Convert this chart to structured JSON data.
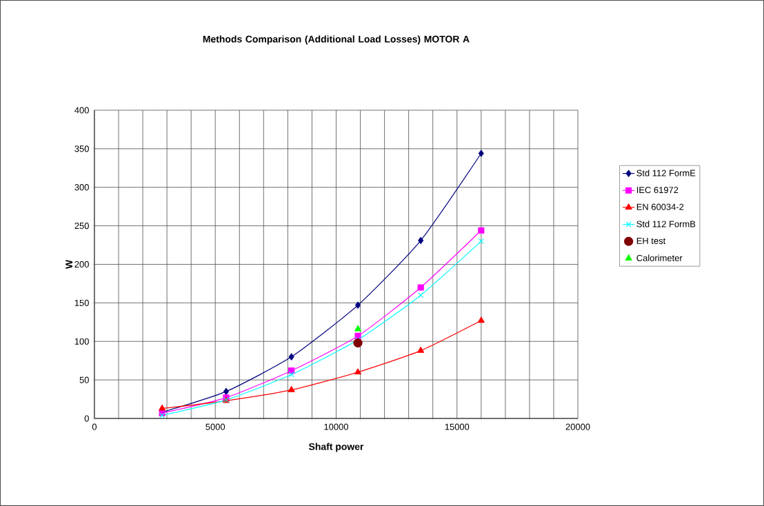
{
  "chart_data": {
    "type": "line",
    "title": "Methods Comparison (Additional Load Losses) MOTOR A",
    "xlabel": "Shaft power",
    "ylabel": "W",
    "xlim": [
      0,
      20000
    ],
    "ylim": [
      0,
      400
    ],
    "xticks": [
      0,
      {
        "value": 1000,
        "label": null
      },
      {
        "value": 2000,
        "label": null
      },
      {
        "value": 3000,
        "label": null
      },
      {
        "value": 4000,
        "label": null
      },
      5000,
      {
        "value": 6000,
        "label": null
      },
      {
        "value": 7000,
        "label": null
      },
      {
        "value": 8000,
        "label": null
      },
      {
        "value": 9000,
        "label": null
      },
      10000,
      {
        "value": 11000,
        "label": null
      },
      {
        "value": 12000,
        "label": null
      },
      {
        "value": 13000,
        "label": null
      },
      {
        "value": 14000,
        "label": null
      },
      15000,
      {
        "value": 16000,
        "label": null
      },
      {
        "value": 17000,
        "label": null
      },
      {
        "value": 18000,
        "label": null
      },
      {
        "value": 19000,
        "label": null
      },
      20000
    ],
    "yticks": [
      0,
      50,
      100,
      150,
      200,
      250,
      300,
      350,
      400
    ],
    "grid": true,
    "legend": "right",
    "series": [
      {
        "name": "Std 112 FormE",
        "color": "#000080",
        "marker": "diamond",
        "x": [
          2800,
          5450,
          8150,
          10900,
          13500,
          16000
        ],
        "values": [
          8,
          35,
          80,
          147,
          231,
          344
        ]
      },
      {
        "name": "IEC 61972",
        "color": "#ff00ff",
        "marker": "square",
        "x": [
          2800,
          5450,
          8150,
          10900,
          13500,
          16000
        ],
        "values": [
          7,
          27,
          62,
          107,
          170,
          244
        ]
      },
      {
        "name": "EN 60034-2",
        "color": "#ff0000",
        "marker": "triangle",
        "x": [
          2800,
          5450,
          8150,
          10900,
          13500,
          16000
        ],
        "values": [
          13,
          23,
          37,
          60,
          88,
          127
        ]
      },
      {
        "name": "Std 112 FormB",
        "color": "#00ffff",
        "marker": "cross",
        "x": [
          2800,
          5450,
          8150,
          10900,
          13500,
          16000
        ],
        "values": [
          4,
          24,
          57,
          102,
          160,
          230
        ]
      },
      {
        "name": "EH test",
        "color": "#800000",
        "marker": "circle",
        "type": "scatter",
        "x": [
          10900
        ],
        "values": [
          98
        ]
      },
      {
        "name": "Calorimeter",
        "color": "#00ff00",
        "marker": "triangle",
        "type": "scatter",
        "x": [
          10900
        ],
        "values": [
          116
        ]
      }
    ]
  }
}
